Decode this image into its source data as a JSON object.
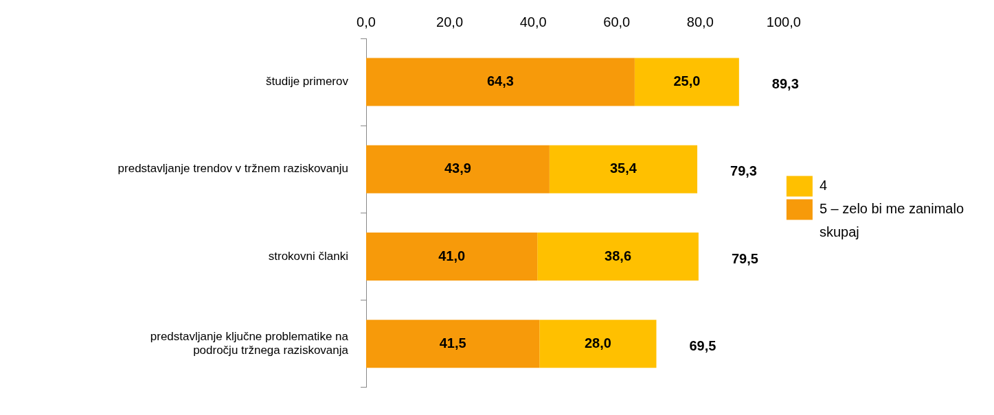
{
  "chart_data": {
    "type": "bar",
    "orientation": "horizontal",
    "stacked": true,
    "categories": [
      "študije primerov",
      "predstavljanje trendov v tržnem raziskovanju",
      "strokovni članki",
      "predstavljanje ključne problematike na področju tržnega raziskovanja"
    ],
    "series": [
      {
        "name": "5 – zelo bi me zanimalo",
        "color": "#f79a0a",
        "values": [
          64.3,
          43.9,
          41.0,
          41.5
        ],
        "value_labels": [
          "64,3",
          "43,9",
          "41,0",
          "41,5"
        ]
      },
      {
        "name": "4",
        "color": "#ffc000",
        "values": [
          25.0,
          35.4,
          38.6,
          28.0
        ],
        "value_labels": [
          "25,0",
          "35,4",
          "38,6",
          "28,0"
        ]
      },
      {
        "name": "skupaj",
        "type": "scatter",
        "values": [
          null,
          null,
          null,
          null
        ]
      }
    ],
    "totals": [
      "89,3",
      "79,3",
      "79,5",
      "69,5"
    ],
    "xlim": [
      0,
      100
    ],
    "xticks": [
      {
        "value": 0,
        "label": "0,0"
      },
      {
        "value": 20,
        "label": "20,0"
      },
      {
        "value": 40,
        "label": "40,0"
      },
      {
        "value": 60,
        "label": "60,0"
      },
      {
        "value": 80,
        "label": "80,0"
      },
      {
        "value": 100,
        "label": "100,0"
      }
    ],
    "grid": false,
    "legend": "right"
  }
}
